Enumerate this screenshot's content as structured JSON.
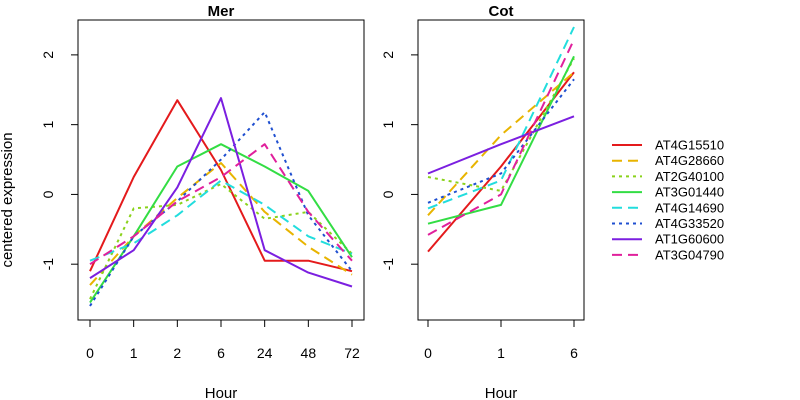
{
  "chart_data": {
    "type": "line",
    "ylabel": "centered expression",
    "legend_position": "right",
    "grid": false,
    "series_styles": [
      {
        "name": "AT4G15510",
        "color": "#e41a1c",
        "dash": "solid"
      },
      {
        "name": "AT4G28660",
        "color": "#e8b400",
        "dash": "dashed"
      },
      {
        "name": "AT2G40100",
        "color": "#8ad21b",
        "dash": "dotted"
      },
      {
        "name": "AT3G01440",
        "color": "#33dd44",
        "dash": "solid"
      },
      {
        "name": "AT4G14690",
        "color": "#22dddd",
        "dash": "dashed"
      },
      {
        "name": "AT4G33520",
        "color": "#1f4fd0",
        "dash": "dotted"
      },
      {
        "name": "AT1G60600",
        "color": "#7b1fe0",
        "dash": "solid"
      },
      {
        "name": "AT3G04790",
        "color": "#e0209c",
        "dash": "dashed"
      }
    ],
    "panels": [
      {
        "title": "Mer",
        "xlabel": "Hour",
        "categories": [
          "0",
          "1",
          "2",
          "6",
          "24",
          "48",
          "72"
        ],
        "ylim": [
          -1.8,
          2.5
        ],
        "yticks": [
          "-1",
          "0",
          "1",
          "2"
        ],
        "series": [
          {
            "name": "AT4G15510",
            "values": [
              -1.1,
              0.25,
              1.35,
              0.35,
              -0.95,
              -0.95,
              -1.1
            ]
          },
          {
            "name": "AT4G28660",
            "values": [
              -1.3,
              -0.6,
              -0.05,
              0.45,
              -0.25,
              -0.75,
              -1.15
            ]
          },
          {
            "name": "AT2G40100",
            "values": [
              -1.5,
              -0.2,
              -0.15,
              0.15,
              -0.35,
              -0.25,
              -0.85
            ]
          },
          {
            "name": "AT3G01440",
            "values": [
              -1.55,
              -0.6,
              0.4,
              0.72,
              0.4,
              0.05,
              -0.9
            ]
          },
          {
            "name": "AT4G14690",
            "values": [
              -0.95,
              -0.7,
              -0.3,
              0.2,
              -0.15,
              -0.6,
              -0.85
            ]
          },
          {
            "name": "AT4G33520",
            "values": [
              -1.6,
              -0.6,
              -0.1,
              0.5,
              1.18,
              -0.3,
              -1.1
            ]
          },
          {
            "name": "AT1G60600",
            "values": [
              -1.2,
              -0.8,
              0.1,
              1.38,
              -0.8,
              -1.12,
              -1.32
            ]
          },
          {
            "name": "AT3G04790",
            "values": [
              -1.0,
              -0.6,
              -0.1,
              0.25,
              0.72,
              -0.25,
              -0.95
            ]
          }
        ]
      },
      {
        "title": "Cot",
        "xlabel": "Hour",
        "categories": [
          "0",
          "1",
          "6"
        ],
        "ylim": [
          -1.8,
          2.5
        ],
        "yticks": [
          "-1",
          "0",
          "1",
          "2"
        ],
        "series": [
          {
            "name": "AT4G15510",
            "values": [
              -0.82,
              0.4,
              1.75
            ]
          },
          {
            "name": "AT4G28660",
            "values": [
              -0.3,
              0.85,
              1.75
            ]
          },
          {
            "name": "AT2G40100",
            "values": [
              0.25,
              0.05,
              1.95
            ]
          },
          {
            "name": "AT3G01440",
            "values": [
              -0.42,
              -0.15,
              1.98
            ]
          },
          {
            "name": "AT4G14690",
            "values": [
              -0.2,
              0.2,
              2.4
            ]
          },
          {
            "name": "AT4G33520",
            "values": [
              -0.12,
              0.3,
              1.65
            ]
          },
          {
            "name": "AT1G60600",
            "values": [
              0.3,
              0.72,
              1.12
            ]
          },
          {
            "name": "AT3G04790",
            "values": [
              -0.58,
              0.0,
              2.22
            ]
          }
        ]
      }
    ]
  }
}
